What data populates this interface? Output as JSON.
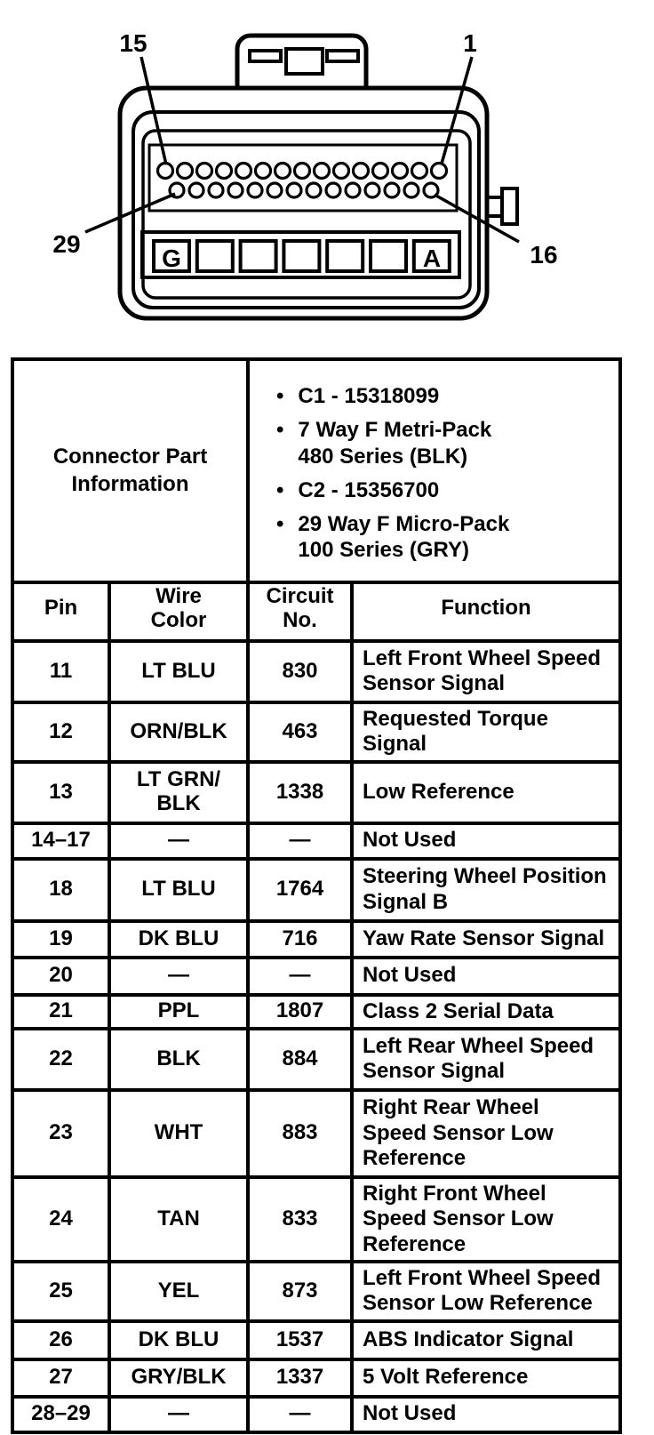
{
  "diagram": {
    "labels": {
      "top_left": "15",
      "top_right": "1",
      "bottom_left": "29",
      "bottom_right": "16"
    },
    "terminal_letters": {
      "first": "G",
      "last": "A"
    },
    "pins": {
      "top_row_count": 15,
      "bottom_row_count": 14,
      "terminal_squares_count": 7
    }
  },
  "table": {
    "part_info": {
      "title": "Connector Part\nInformation",
      "bullets": [
        "C1 - 15318099",
        "7 Way F Metri-Pack\n480 Series (BLK)",
        "C2 - 15356700",
        "29 Way F Micro-Pack\n100 Series (GRY)"
      ]
    },
    "columns": [
      "Pin",
      "Wire\nColor",
      "Circuit\nNo.",
      "Function"
    ],
    "rows": [
      {
        "pin": "11",
        "wire_color": "LT BLU",
        "circuit_no": "830",
        "function": "Left Front Wheel Speed\nSensor Signal"
      },
      {
        "pin": "12",
        "wire_color": "ORN/BLK",
        "circuit_no": "463",
        "function": "Requested Torque\nSignal"
      },
      {
        "pin": "13",
        "wire_color": "LT GRN/\nBLK",
        "circuit_no": "1338",
        "function": "Low Reference"
      },
      {
        "pin": "14–17",
        "wire_color": "—",
        "circuit_no": "—",
        "function": "Not Used"
      },
      {
        "pin": "18",
        "wire_color": "LT BLU",
        "circuit_no": "1764",
        "function": "Steering Wheel Position\nSignal B"
      },
      {
        "pin": "19",
        "wire_color": "DK BLU",
        "circuit_no": "716",
        "function": "Yaw Rate Sensor Signal"
      },
      {
        "pin": "20",
        "wire_color": "—",
        "circuit_no": "—",
        "function": "Not Used"
      },
      {
        "pin": "21",
        "wire_color": "PPL",
        "circuit_no": "1807",
        "function": "Class 2 Serial Data"
      },
      {
        "pin": "22",
        "wire_color": "BLK",
        "circuit_no": "884",
        "function": "Left Rear Wheel Speed\nSensor Signal"
      },
      {
        "pin": "23",
        "wire_color": "WHT",
        "circuit_no": "883",
        "function": "Right Rear Wheel\nSpeed Sensor Low\nReference"
      },
      {
        "pin": "24",
        "wire_color": "TAN",
        "circuit_no": "833",
        "function": "Right Front Wheel\nSpeed Sensor Low\nReference"
      },
      {
        "pin": "25",
        "wire_color": "YEL",
        "circuit_no": "873",
        "function": "Left Front Wheel Speed\nSensor Low Reference"
      },
      {
        "pin": "26",
        "wire_color": "DK BLU",
        "circuit_no": "1537",
        "function": "ABS Indicator Signal"
      },
      {
        "pin": "27",
        "wire_color": "GRY/BLK",
        "circuit_no": "1337",
        "function": "5 Volt Reference"
      },
      {
        "pin": "28–29",
        "wire_color": "—",
        "circuit_no": "—",
        "function": "Not Used"
      }
    ]
  },
  "colors": {
    "ink": "#000000",
    "paper": "#ffffff"
  }
}
